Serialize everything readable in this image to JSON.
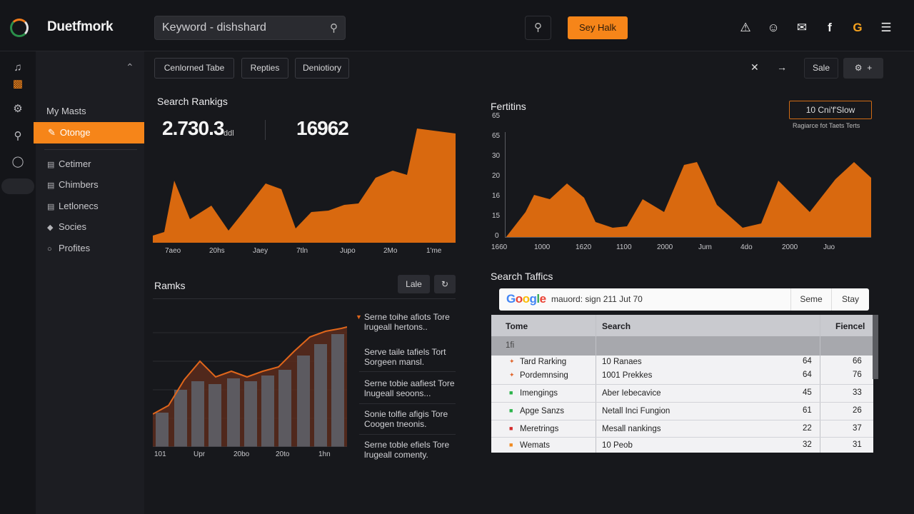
{
  "header": {
    "brand": "Duetfmork",
    "search_value": "Keyword - dishshard",
    "cta_label": "Sey Halk",
    "icons": [
      "alert-triangle-icon",
      "user-icon",
      "mail-icon",
      "facebook-icon",
      "google-icon",
      "menu-icon"
    ]
  },
  "sidebar": {
    "heading": "My Masts",
    "active_label": "Otonge",
    "items": [
      {
        "label": "Cetimer",
        "icon": "lock-icon"
      },
      {
        "label": "Chimbers",
        "icon": "list-icon"
      },
      {
        "label": "Letlonecs",
        "icon": "doc-icon"
      },
      {
        "label": "Socies",
        "icon": "tag-icon"
      },
      {
        "label": "Profites",
        "icon": "circle-icon"
      }
    ]
  },
  "toolbar": {
    "chips": [
      "Cenlorned Tabe",
      "Repties",
      "Deniotiory"
    ],
    "save_label": "Sale",
    "add_label": "+"
  },
  "search_rankings": {
    "title": "Search Rankigs",
    "metric1": "2.730.3",
    "metric1_unit": "ddl",
    "metric2": "16962",
    "x_labels": [
      "7aeo",
      "20hs",
      "Jaey",
      "7tln",
      "Jupo",
      "2Mo",
      "1'me"
    ]
  },
  "positions": {
    "title": "Fertitins",
    "button_label": "10 Cni'f'Slow",
    "sub_label": "Ragiarce fot Taets Terts",
    "y_labels": [
      "65",
      "65",
      "30",
      "20",
      "16",
      "15",
      "0"
    ],
    "x_labels": [
      "1660",
      "1000",
      "1620",
      "1100",
      "2000",
      "Jum",
      "4do",
      "2000",
      "Juo"
    ]
  },
  "ranks": {
    "title": "Ramks",
    "late_label": "Lale",
    "x_labels": [
      "101",
      "Upr",
      "20bo",
      "20to",
      "1hn"
    ],
    "notes": [
      {
        "line1": "Serne toihe afiots Tore",
        "line2": "lrugeall hertons.."
      },
      {
        "line1": "Serve taile tafiels Tort",
        "line2": "Sorgeen mansl."
      },
      {
        "line1": "Serne tobie aafiest Tore",
        "line2": "lnugeall seoons..."
      },
      {
        "line1": "Sonie tolfie afigis Tore",
        "line2": "Coogen tneonis."
      },
      {
        "line1": "Serne toble efiels Tore",
        "line2": "lrugeall comenty."
      }
    ]
  },
  "search_traffic": {
    "title": "Search Taffics",
    "google_logo": "Google",
    "query": "mauord: sign 211 Jut 70",
    "btn1": "Seme",
    "btn2": "Stay",
    "columns": [
      "Tome",
      "Search",
      "Fiencel"
    ],
    "subrow": "1fi",
    "rows": [
      {
        "name": "Tard Rarking",
        "search": "10 Ranaes",
        "v1": "64",
        "v2": "66",
        "color": "#e0642a",
        "mark": "✦"
      },
      {
        "name": "Pordemnsing",
        "search": "1001 Prekkes",
        "v1": "64",
        "v2": "76",
        "color": "#e0642a",
        "mark": "✦"
      },
      {
        "name": "Imengings",
        "search": "Aber Iebecavice",
        "v1": "45",
        "v2": "33",
        "color": "#2bb34a",
        "mark": "■"
      },
      {
        "name": "Apge Sanzs",
        "search": "Netall Inci Fungion",
        "v1": "61",
        "v2": "26",
        "color": "#2bb34a",
        "mark": "■"
      },
      {
        "name": "Meretrings",
        "search": "Mesall nankings",
        "v1": "22",
        "v2": "37",
        "color": "#d42a2a",
        "mark": "■"
      },
      {
        "name": "Wemats",
        "search": "10 Peob",
        "v1": "32",
        "v2": "31",
        "color": "#f08a20",
        "mark": "■"
      }
    ]
  }
}
